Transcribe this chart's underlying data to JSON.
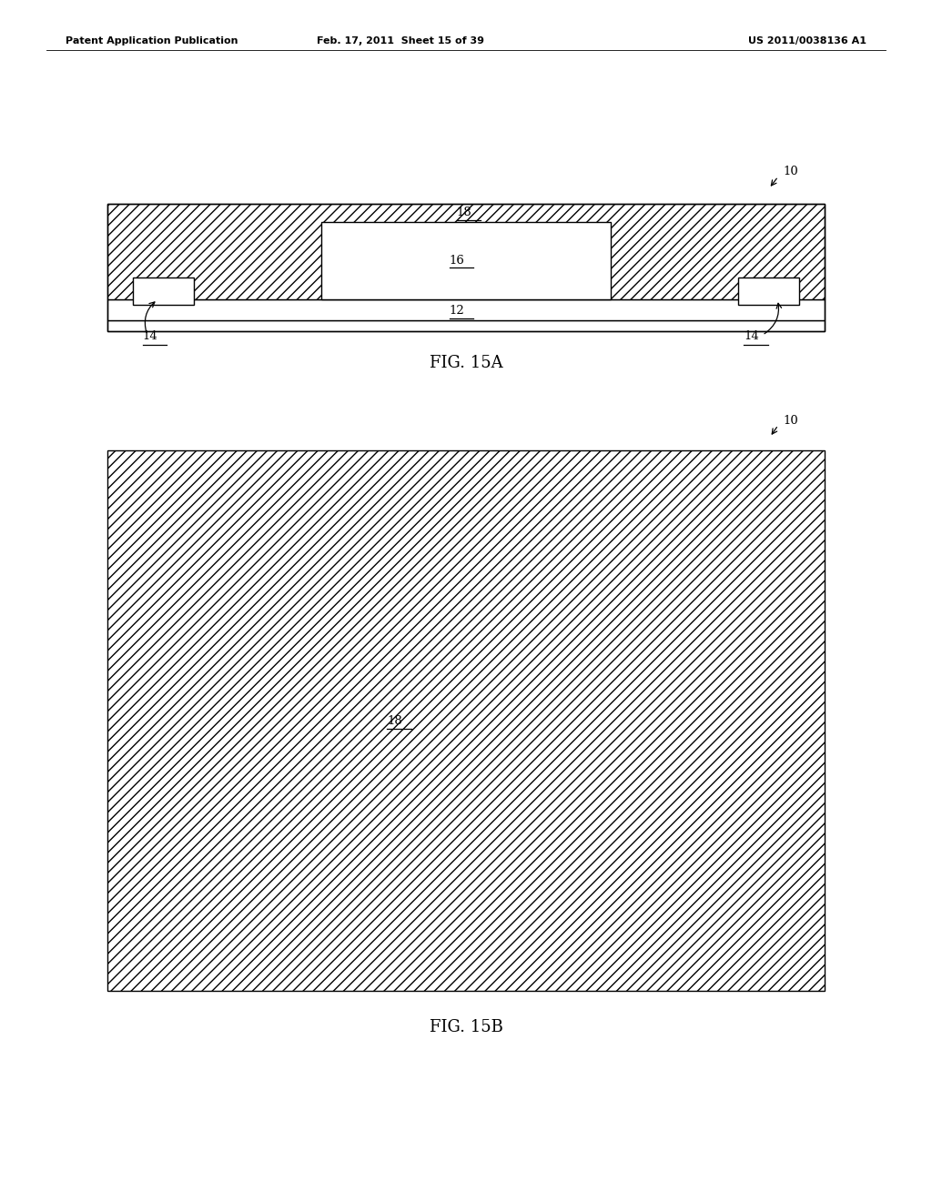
{
  "bg_color": "#ffffff",
  "page_width": 10.24,
  "page_height": 13.2,
  "header_text_left": "Patent Application Publication",
  "header_text_mid": "Feb. 17, 2011  Sheet 15 of 39",
  "header_text_right": "US 2011/0038136 A1",
  "fig15a_label": "FIG. 15A",
  "fig15b_label": "FIG. 15B",
  "line_color": "#000000"
}
